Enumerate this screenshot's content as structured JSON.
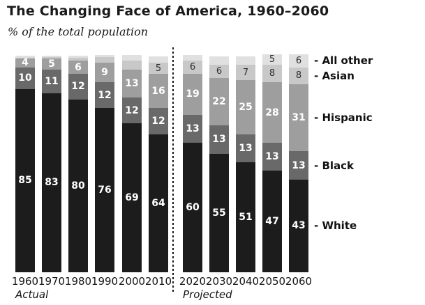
{
  "chart_data": {
    "type": "bar",
    "variant": "stacked-percent",
    "title": "The Changing Face of America, 1960–2060",
    "subtitle": "% of the total population",
    "group_labels": {
      "actual": "Actual",
      "projected": "Projected"
    },
    "legend_position": "right",
    "value_unit": "percent",
    "ylim": [
      0,
      100
    ],
    "categories": [
      {
        "id": "white",
        "name": "White",
        "legend_label": "- White",
        "color": "#1c1c1c",
        "label_style": "light"
      },
      {
        "id": "black",
        "name": "Black",
        "legend_label": "- Black",
        "color": "#696969",
        "label_style": "light"
      },
      {
        "id": "hispanic",
        "name": "Hispanic",
        "legend_label": "- Hispanic",
        "color": "#9e9e9e",
        "label_style": "light"
      },
      {
        "id": "asian",
        "name": "Asian",
        "legend_label": "- Asian",
        "color": "#c8c8c8",
        "label_style": "dark"
      },
      {
        "id": "all_other",
        "name": "All other",
        "legend_label": "- All other",
        "color": "#e0e0e0",
        "label_style": "dark"
      }
    ],
    "bars": [
      {
        "year": "1960",
        "group": "actual",
        "values": {
          "white": 85,
          "black": 10,
          "hispanic": 4,
          "asian": 0.5,
          "all_other": 0.7
        },
        "labels": {
          "white": "85",
          "black": "10",
          "hispanic": "4"
        }
      },
      {
        "year": "1970",
        "group": "actual",
        "values": {
          "white": 83,
          "black": 11,
          "hispanic": 5,
          "asian": 0.6,
          "all_other": 0.8
        },
        "labels": {
          "white": "83",
          "black": "11",
          "hispanic": "5"
        }
      },
      {
        "year": "1980",
        "group": "actual",
        "values": {
          "white": 80,
          "black": 12,
          "hispanic": 6,
          "asian": 1.3,
          "all_other": 1.0
        },
        "labels": {
          "white": "80",
          "black": "12",
          "hispanic": "6"
        }
      },
      {
        "year": "1990",
        "group": "actual",
        "values": {
          "white": 76,
          "black": 12,
          "hispanic": 9,
          "asian": 2.7,
          "all_other": 1.1
        },
        "labels": {
          "white": "76",
          "black": "12",
          "hispanic": "9"
        }
      },
      {
        "year": "2000",
        "group": "actual",
        "values": {
          "white": 69,
          "black": 12,
          "hispanic": 13,
          "asian": 4.0,
          "all_other": 2.6
        },
        "labels": {
          "white": "69",
          "black": "12",
          "hispanic": "13"
        }
      },
      {
        "year": "2010",
        "group": "actual",
        "values": {
          "white": 64,
          "black": 12,
          "hispanic": 16,
          "asian": 5,
          "all_other": 3.0
        },
        "labels": {
          "white": "64",
          "black": "12",
          "hispanic": "16",
          "asian": "5"
        }
      },
      {
        "year": "2020",
        "group": "projected",
        "values": {
          "white": 60,
          "black": 13,
          "hispanic": 19,
          "asian": 6,
          "all_other": 2.8
        },
        "labels": {
          "white": "60",
          "black": "13",
          "hispanic": "19",
          "asian": "6"
        }
      },
      {
        "year": "2030",
        "group": "projected",
        "values": {
          "white": 55,
          "black": 13,
          "hispanic": 22,
          "asian": 6,
          "all_other": 4.0
        },
        "labels": {
          "white": "55",
          "black": "13",
          "hispanic": "22",
          "asian": "6"
        }
      },
      {
        "year": "2040",
        "group": "projected",
        "values": {
          "white": 51,
          "black": 13,
          "hispanic": 25,
          "asian": 7,
          "all_other": 4.0
        },
        "labels": {
          "white": "51",
          "black": "13",
          "hispanic": "25",
          "asian": "7"
        }
      },
      {
        "year": "2050",
        "group": "projected",
        "values": {
          "white": 47,
          "black": 13,
          "hispanic": 28,
          "asian": 8,
          "all_other": 5
        },
        "labels": {
          "white": "47",
          "black": "13",
          "hispanic": "28",
          "asian": "8",
          "all_other": "5"
        }
      },
      {
        "year": "2060",
        "group": "projected",
        "values": {
          "white": 43,
          "black": 13,
          "hispanic": 31,
          "asian": 8,
          "all_other": 6
        },
        "labels": {
          "white": "43",
          "black": "13",
          "hispanic": "31",
          "asian": "8",
          "all_other": "6"
        }
      }
    ]
  }
}
